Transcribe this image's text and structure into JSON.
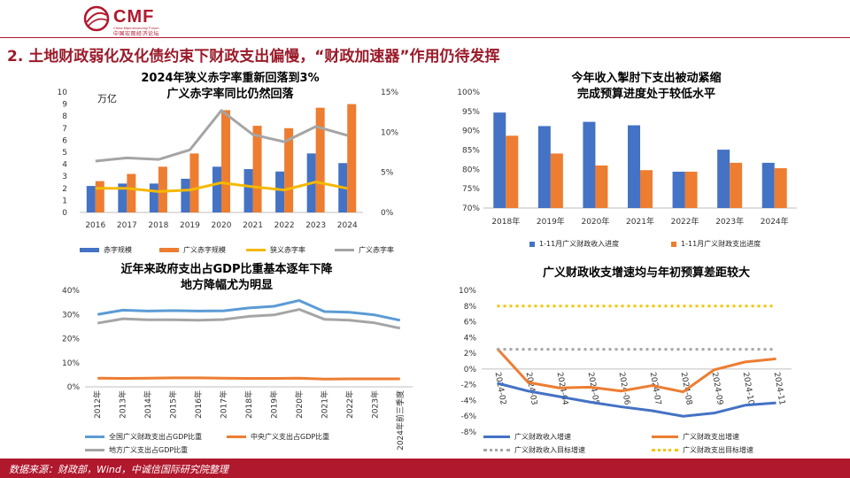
{
  "header": {
    "logo_text": "CMF",
    "logo_subtitle_en": "China Macroeconomy Forum",
    "logo_subtitle_cn": "中国宏观经济论坛",
    "headline": "2. 土地财政弱化及化债约束下财政支出偏慢，“财政加速器”作用仍待发挥",
    "brand_color": "#b0182e"
  },
  "footer": {
    "source": "数据来源：财政部，Wind，中诚信国际研究院整理"
  },
  "charts": {
    "deficit": {
      "title1": "2024年狭义赤字率重新回落到3%",
      "title2": "广义赤字率同比仍然回落",
      "unit": "万亿",
      "legend": [
        "赤字规模",
        "广义赤字规模",
        "狭义赤字率",
        "广义赤字率"
      ]
    },
    "progress": {
      "title1": "今年收入掣肘下支出被动紧缩",
      "title2": "完成预算进度处于较低水平",
      "legend": [
        "1-11月广义财政收入进度",
        "1-11月广义财政支出进度"
      ]
    },
    "gdp_share": {
      "title1": "近年来政府支出占GDP比重基本逐年下降",
      "title2": "地方降幅尤为明显",
      "legend": [
        "全国广义财政支出占GDP比重",
        "中央广义支出占GDP比重",
        "地方广义支出占GDP比重"
      ]
    },
    "growth": {
      "title": "广义财政收支增速均与年初预算差距较大",
      "legend": [
        "广义财政收入增速",
        "广义财政支出增速",
        "广义财政收入目标增速",
        "广义财政支出目标增速"
      ]
    }
  },
  "chart_data": [
    {
      "id": "deficit",
      "type": "bar",
      "categories": [
        "2016",
        "2017",
        "2018",
        "2019",
        "2020",
        "2021",
        "2022",
        "2023",
        "2024"
      ],
      "series": [
        {
          "name": "赤字规模",
          "kind": "bar",
          "axis": "left",
          "color": "#4472c4",
          "values": [
            2.2,
            2.4,
            2.4,
            2.8,
            3.8,
            3.6,
            3.4,
            4.9,
            4.1
          ]
        },
        {
          "name": "广义赤字规模",
          "kind": "bar",
          "axis": "left",
          "color": "#ed7d31",
          "values": [
            2.6,
            3.2,
            3.8,
            4.9,
            8.5,
            7.2,
            7.0,
            8.7,
            9.0
          ]
        },
        {
          "name": "狭义赤字率",
          "kind": "line",
          "axis": "right",
          "color": "#f5b800",
          "values": [
            3.0,
            3.0,
            2.6,
            2.8,
            3.7,
            3.2,
            2.8,
            3.8,
            3.0
          ]
        },
        {
          "name": "广义赤字率",
          "kind": "line",
          "axis": "right",
          "color": "#a5a5a5",
          "values": [
            6.4,
            6.8,
            6.6,
            7.8,
            12.7,
            9.7,
            8.8,
            10.7,
            9.6
          ]
        }
      ],
      "yticks_left": [
        "0",
        "1",
        "2",
        "3",
        "4",
        "5",
        "6",
        "7",
        "8",
        "9",
        "10"
      ],
      "yticks_right": [
        "0%",
        "5%",
        "10%",
        "15%"
      ],
      "ylim_left": [
        0,
        10
      ],
      "ylim_right": [
        0,
        15
      ],
      "grid": false
    },
    {
      "id": "progress",
      "type": "bar",
      "categories": [
        "2018年",
        "2019年",
        "2020年",
        "2021年",
        "2022年",
        "2023年",
        "2024年"
      ],
      "series": [
        {
          "name": "1-11月广义财政收入进度",
          "color": "#4472c4",
          "values": [
            94.7,
            91.2,
            92.3,
            91.4,
            79.4,
            85.1,
            81.7
          ]
        },
        {
          "name": "1-11月广义财政支出进度",
          "color": "#ed7d31",
          "values": [
            88.7,
            84.1,
            81.0,
            79.8,
            79.4,
            81.7,
            80.3
          ]
        }
      ],
      "yticks": [
        "70%",
        "75%",
        "80%",
        "85%",
        "90%",
        "95%",
        "100%"
      ],
      "ylim": [
        70,
        100
      ],
      "grid": false
    },
    {
      "id": "gdp_share",
      "type": "line",
      "categories": [
        "2012年",
        "2013年",
        "2014年",
        "2015年",
        "2016年",
        "2017年",
        "2018年",
        "2019年",
        "2020年",
        "2021年",
        "2022年",
        "2023年",
        "2024年前三季度"
      ],
      "series": [
        {
          "name": "全国广义财政支出占GDP比重",
          "color": "#5b9bd5",
          "values": [
            30.0,
            31.8,
            31.4,
            31.6,
            31.4,
            31.5,
            32.7,
            33.4,
            35.8,
            31.2,
            30.9,
            29.8,
            27.6
          ]
        },
        {
          "name": "中央广义支出占GDP比重",
          "color": "#ed7d31",
          "values": [
            3.6,
            3.5,
            3.6,
            3.7,
            3.7,
            3.6,
            3.5,
            3.5,
            3.6,
            3.2,
            3.3,
            3.3,
            3.3
          ]
        },
        {
          "name": "地方广义支出占GDP比重",
          "color": "#a5a5a5",
          "values": [
            26.4,
            28.2,
            27.8,
            27.8,
            27.6,
            27.9,
            29.2,
            29.8,
            32.1,
            28.0,
            27.6,
            26.5,
            24.3
          ]
        }
      ],
      "yticks": [
        "0%",
        "10%",
        "20%",
        "30%",
        "40%"
      ],
      "ylim": [
        0,
        40
      ],
      "grid": false
    },
    {
      "id": "growth",
      "type": "line",
      "categories": [
        "2024-02",
        "2024-03",
        "2024-04",
        "2024-05",
        "2024-06",
        "2024-07",
        "2024-08",
        "2024-09",
        "2024-10",
        "2024-11"
      ],
      "series": [
        {
          "name": "广义财政收入增速",
          "color": "#4472c4",
          "style": "solid",
          "values": [
            -1.8,
            -2.8,
            -3.5,
            -4.2,
            -4.8,
            -5.3,
            -6.0,
            -5.6,
            -4.6,
            -4.3
          ]
        },
        {
          "name": "广义财政支出增速",
          "color": "#ed7d31",
          "style": "solid",
          "values": [
            2.6,
            -1.7,
            -2.4,
            -2.3,
            -2.8,
            -2.1,
            -2.9,
            -0.1,
            0.9,
            1.3
          ]
        },
        {
          "name": "广义财政收入目标增速",
          "color": "#a5a5a5",
          "style": "dotted",
          "values": [
            2.5,
            2.5,
            2.5,
            2.5,
            2.5,
            2.5,
            2.5,
            2.5,
            2.5,
            2.5
          ]
        },
        {
          "name": "广义财政支出目标增速",
          "color": "#f5c400",
          "style": "dotted",
          "values": [
            8.0,
            8.0,
            8.0,
            8.0,
            8.0,
            8.0,
            8.0,
            8.0,
            8.0,
            8.0
          ]
        }
      ],
      "yticks": [
        "-8%",
        "-6%",
        "-4%",
        "-2%",
        "0%",
        "2%",
        "4%",
        "6%",
        "8%",
        "10%"
      ],
      "ylim": [
        -8,
        10
      ],
      "grid": false
    }
  ]
}
